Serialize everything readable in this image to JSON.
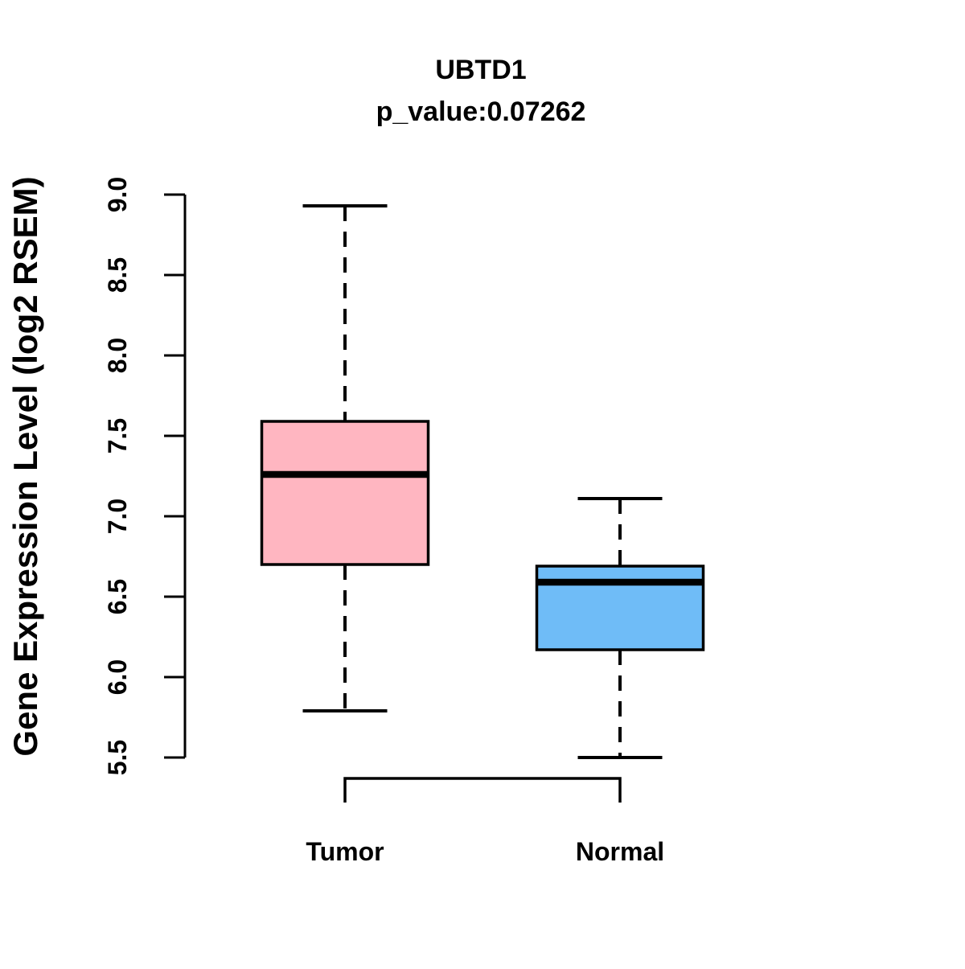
{
  "chart_data": {
    "type": "boxplot",
    "title": "UBTD1",
    "subtitle": "p_value:0.07262",
    "p_value": 0.07262,
    "ylabel": "Gene Expression Level (log2 RSEM)",
    "xlabel": "",
    "ylim": [
      5.5,
      9.0
    ],
    "yticks": [
      5.5,
      6.0,
      6.5,
      7.0,
      7.5,
      8.0,
      8.5,
      9.0
    ],
    "categories": [
      "Tumor",
      "Normal"
    ],
    "series": [
      {
        "name": "Tumor",
        "color": "#FFB6C1",
        "whisker_low": 5.79,
        "q1": 6.7,
        "median": 7.26,
        "q3": 7.59,
        "whisker_high": 8.93
      },
      {
        "name": "Normal",
        "color": "#6FBCF7",
        "whisker_low": 5.5,
        "q1": 6.17,
        "median": 6.59,
        "q3": 6.69,
        "whisker_high": 7.11
      }
    ],
    "comparison_bracket": {
      "between": [
        "Tumor",
        "Normal"
      ]
    },
    "layout_hints": {
      "grid": false,
      "legend": "none",
      "y_tick_label_orientation": "rotated-90",
      "box_border_color": "#000000",
      "median_color": "#000000",
      "background": "#FFFFFF",
      "whisker_style": "dashed"
    }
  }
}
